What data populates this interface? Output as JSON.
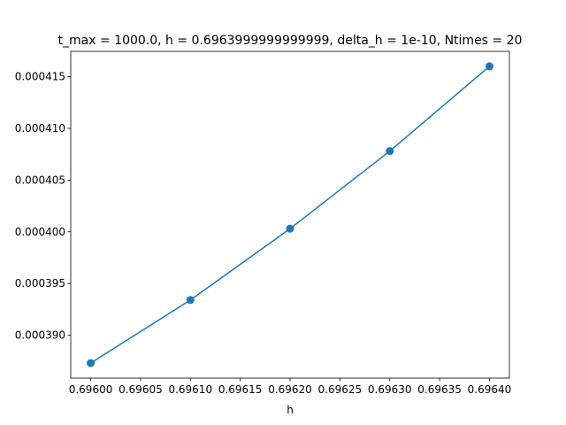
{
  "chart_data": {
    "type": "line",
    "title": "t_max = 1000.0, h = 0.6963999999999999, delta_h = 1e-10, Ntimes = 20",
    "xlabel": "h",
    "ylabel": "",
    "x": [
      0.696,
      0.6961,
      0.6962,
      0.6963,
      0.6964
    ],
    "series": [
      {
        "name": "",
        "color": "#1f77b4",
        "marker": "circle",
        "values": [
          0.0003873,
          0.0003934,
          0.0004003,
          0.0004078,
          0.000416
        ]
      }
    ],
    "xlim": [
      0.69598,
      0.69642
    ],
    "ylim": [
      0.00038585,
      0.00041745
    ],
    "xticks": [
      0.696,
      0.69605,
      0.6961,
      0.69615,
      0.6962,
      0.69625,
      0.6963,
      0.69635,
      0.6964
    ],
    "xtick_labels": [
      "0.69600",
      "0.69605",
      "0.69610",
      "0.69615",
      "0.69620",
      "0.69625",
      "0.69630",
      "0.69635",
      "0.69640"
    ],
    "yticks": [
      0.00039,
      0.000395,
      0.0004,
      0.000405,
      0.00041,
      0.000415
    ],
    "ytick_labels": [
      "0.000390",
      "0.000395",
      "0.000400",
      "0.000405",
      "0.000410",
      "0.000415"
    ],
    "grid": false,
    "legend": "none"
  }
}
